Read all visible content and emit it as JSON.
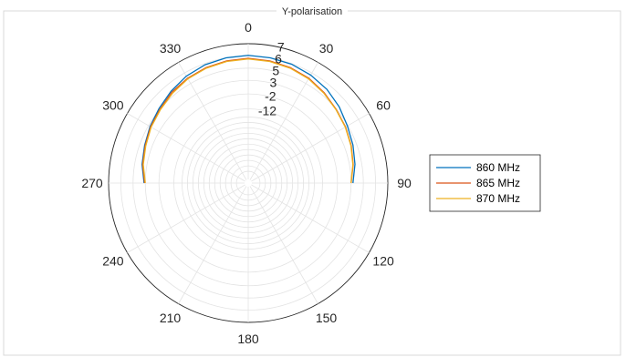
{
  "chart_data": {
    "type": "line",
    "projection": "polar",
    "title": "Y-polarisation",
    "theta_zero_location": "top",
    "theta_direction": "clockwise",
    "theta_ticks": [
      0,
      30,
      60,
      90,
      120,
      150,
      180,
      210,
      240,
      270,
      300,
      330
    ],
    "theta_tick_labels": [
      "0",
      "30",
      "60",
      "90",
      "120",
      "150",
      "180",
      "210",
      "240",
      "270",
      "300",
      "330"
    ],
    "r_ticks": [
      -12,
      -2,
      3,
      5,
      6,
      7
    ],
    "r_tick_labels": [
      "-12",
      "-2",
      "3",
      "5",
      "6",
      "7"
    ],
    "grid": true,
    "legend_position": "right",
    "series": [
      {
        "name": "860 MHz",
        "color": "#0072BD",
        "theta": [
          -90,
          -80,
          -70,
          -60,
          -50,
          -40,
          -30,
          -20,
          -10,
          0,
          10,
          20,
          30,
          40,
          50,
          60,
          70,
          80,
          90
        ],
        "r": [
          3.2,
          3.8,
          4.2,
          4.7,
          5.1,
          5.4,
          5.7,
          5.9,
          6.0,
          6.05,
          6.0,
          5.95,
          5.8,
          5.6,
          5.3,
          4.9,
          4.4,
          3.9,
          3.3
        ]
      },
      {
        "name": "865 MHz",
        "color": "#D95319",
        "theta": [
          -90,
          -80,
          -70,
          -60,
          -50,
          -40,
          -30,
          -20,
          -10,
          0,
          10,
          20,
          30,
          40,
          50,
          60,
          70,
          80,
          90
        ],
        "r": [
          3.1,
          3.7,
          4.1,
          4.6,
          5.0,
          5.3,
          5.5,
          5.65,
          5.75,
          5.8,
          5.75,
          5.65,
          5.5,
          5.25,
          4.95,
          4.55,
          4.1,
          3.6,
          3.0
        ]
      },
      {
        "name": "870 MHz",
        "color": "#EDB120",
        "theta": [
          -90,
          -80,
          -70,
          -60,
          -50,
          -40,
          -30,
          -20,
          -10,
          0,
          10,
          20,
          30,
          40,
          50,
          60,
          70,
          80,
          90
        ],
        "r": [
          3.0,
          3.6,
          4.0,
          4.5,
          4.9,
          5.2,
          5.45,
          5.6,
          5.7,
          5.75,
          5.7,
          5.6,
          5.45,
          5.2,
          4.9,
          4.5,
          4.05,
          3.55,
          2.95
        ]
      }
    ]
  }
}
